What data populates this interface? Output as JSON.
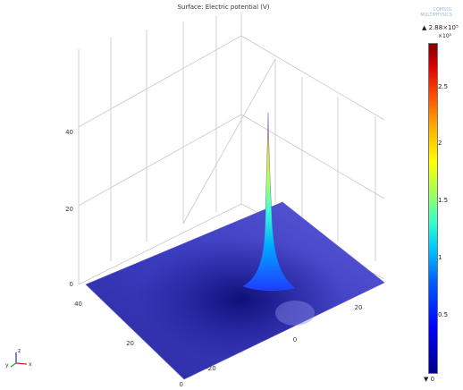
{
  "plot": {
    "title": "Surface: Electric potential (V)",
    "logo_text": "COMSOL MULTIPHYSICS"
  },
  "z_axis": {
    "ticks": [
      "0",
      "20",
      "40"
    ]
  },
  "y_axis": {
    "ticks": [
      "40",
      "20",
      "0"
    ]
  },
  "x_axis": {
    "ticks": [
      "-20",
      "0",
      "20"
    ]
  },
  "colorbar": {
    "max_label": "▲ 2.88×10⁵",
    "multiplier": "×10⁵",
    "min_label": "▼ 0",
    "ticks": [
      "2.5",
      "2",
      "1.5",
      "1",
      "0.5",
      "0"
    ],
    "tick_values": [
      2.5,
      2,
      1.5,
      1,
      0.5,
      0
    ],
    "max_value": 2.88
  },
  "axis_indicator": {
    "z": "z",
    "y": "y",
    "x": "x"
  },
  "colors": {
    "surface_low": "#1c1c8c",
    "surface_mid": "#4646c8",
    "peak": "#a8ff60",
    "grid": "#c8c8c8"
  }
}
